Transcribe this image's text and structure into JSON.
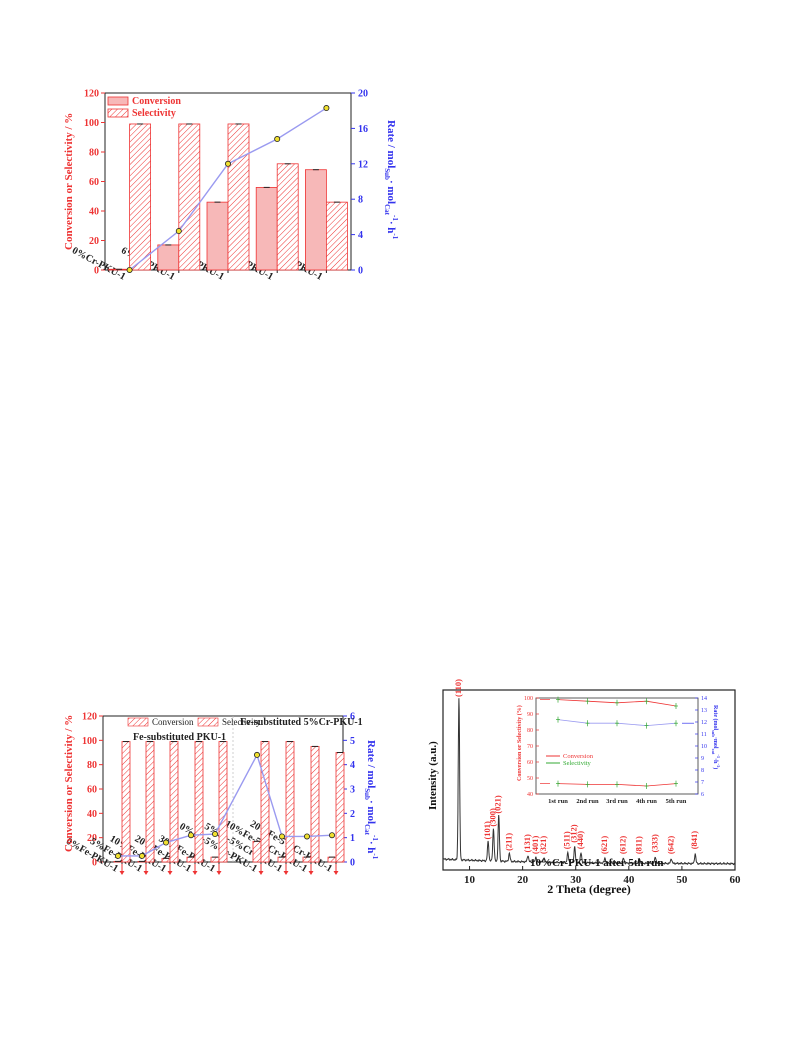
{
  "colors": {
    "red": "#ee3333",
    "blue": "#3333ee",
    "bar_fill": "#f7b8b8",
    "line": "#9a9af0",
    "dark": "#222222"
  },
  "charts": {
    "top": {
      "ylabel_left": "Conversion or Selectivity / %",
      "ylabel_right": "Rate / mol",
      "ylabel_right_sub": "Sub",
      "ylabel_right_mid": "· mol",
      "ylabel_right_sub2": "Cat",
      "ylabel_right_sup": "-1",
      "ylabel_right_tail": "· h",
      "ylabel_right_sup2": "-1",
      "legend": [
        "Conversion",
        "Selectivity"
      ]
    },
    "bottom_left": {
      "ylabel_left": "Conversion or Selectivity / %",
      "ylabel_right": "Rate / mol",
      "ylabel_right_sub": "Sub",
      "ylabel_right_mid": "· mol",
      "ylabel_right_sub2": "Cat",
      "ylabel_right_sup": "-1",
      "ylabel_right_tail": "· h",
      "ylabel_right_sup2": "-1",
      "legend": [
        "Conversion",
        "Selectivity"
      ],
      "group_titles": [
        "Fe-substituted PKU-1",
        "Fe-substituted 5%Cr-PKU-1"
      ]
    },
    "bottom_right": {
      "xlabel": "2 Theta (degree)",
      "ylabel": "Intensity (a.u.)",
      "sample_label": "10%Cr-PKU-1 after 5th run",
      "peak_labels": [
        "(110)",
        "(101)",
        "(300)",
        "(021)",
        "(211)",
        "(131)",
        "(401)",
        "(321)",
        "(511)",
        "(312)",
        "(440)",
        "(621)",
        "(612)",
        "(811)",
        "(333)",
        "(642)",
        "(841)"
      ],
      "inset": {
        "ylabel_left": "Conversion or Selectivity (%)",
        "ylabel_right": "Rate (mol",
        "ylabel_right_sub": "sub",
        "ylabel_right_mid": "·mol",
        "ylabel_right_sub2": "cat",
        "ylabel_right_sup": "-1",
        "ylabel_right_tail": "·h",
        "ylabel_right_sup2": "-1",
        "ylabel_right_end": ")",
        "legend": [
          "Conversion",
          "Selectivity"
        ]
      }
    }
  },
  "chart_data": [
    {
      "type": "bar",
      "categories": [
        "0%Cr-PKU-1",
        "6%Cr-PKU-1",
        "10%Cr-PKU-1",
        "20%Cr-PKU-1",
        "30%Cr-PKU-1"
      ],
      "series": [
        {
          "name": "Conversion",
          "values": [
            0.5,
            17,
            46,
            56,
            68
          ]
        },
        {
          "name": "Selectivity",
          "values": [
            99,
            99,
            99,
            72,
            46
          ]
        }
      ],
      "line": {
        "axis": "right",
        "values": [
          0,
          4.4,
          12,
          14.8,
          18.3
        ]
      },
      "ylim": [
        0,
        120
      ],
      "yticks": [
        0,
        20,
        40,
        60,
        80,
        100,
        120
      ],
      "y2lim": [
        0,
        20
      ],
      "y2ticks": [
        0,
        4,
        8,
        12,
        16,
        20
      ]
    },
    {
      "type": "bar",
      "categories": [
        "0%Fe-PKU-1",
        "5%Fe-PKU-1",
        "10%Fe-PKU-1",
        "20%Fe-PKU-1",
        "30%Fe-PKU-1",
        "0%Fe-5%Cr-PKU-1",
        "5%Fe-5%Cr-PKU-1",
        "10%Fe-5%Cr-PKU-1",
        "20%Fe-5%Cr-PKU-1"
      ],
      "series": [
        {
          "name": "Conversion",
          "values": [
            0.5,
            0.5,
            3,
            4,
            4,
            17,
            4,
            4,
            4
          ]
        },
        {
          "name": "Selectivity",
          "values": [
            99,
            99,
            99,
            99,
            99,
            99,
            99,
            95,
            90
          ]
        }
      ],
      "line": {
        "axis": "right",
        "values": [
          0.25,
          0.25,
          0.8,
          1.1,
          1.15,
          4.4,
          1.05,
          1.05,
          1.1
        ]
      },
      "ylim": [
        0,
        120
      ],
      "yticks": [
        0,
        20,
        40,
        60,
        80,
        100,
        120
      ],
      "y2lim": [
        0,
        6
      ],
      "y2ticks": [
        0,
        1,
        2,
        3,
        4,
        5,
        6
      ]
    },
    {
      "type": "line",
      "x_range": [
        5,
        60
      ],
      "xticks": [
        10,
        20,
        30,
        40,
        50,
        60
      ],
      "peaks": [
        {
          "label": "(110)",
          "x": 8.0,
          "h": 1.0
        },
        {
          "label": "(101)",
          "x": 13.5,
          "h": 0.12
        },
        {
          "label": "(300)",
          "x": 14.5,
          "h": 0.2
        },
        {
          "label": "(021)",
          "x": 15.5,
          "h": 0.28
        },
        {
          "label": "(211)",
          "x": 17.5,
          "h": 0.05
        },
        {
          "label": "(131)",
          "x": 21.0,
          "h": 0.04
        },
        {
          "label": "(401)",
          "x": 22.5,
          "h": 0.03
        },
        {
          "label": "(321)",
          "x": 24.0,
          "h": 0.03
        },
        {
          "label": "(511)",
          "x": 28.5,
          "h": 0.06
        },
        {
          "label": "(312)",
          "x": 29.8,
          "h": 0.1
        },
        {
          "label": "(440)",
          "x": 31.0,
          "h": 0.06
        },
        {
          "label": "(621)",
          "x": 35.5,
          "h": 0.03
        },
        {
          "label": "(612)",
          "x": 39.0,
          "h": 0.03
        },
        {
          "label": "(811)",
          "x": 42.0,
          "h": 0.03
        },
        {
          "label": "(333)",
          "x": 45.0,
          "h": 0.04
        },
        {
          "label": "(642)",
          "x": 48.0,
          "h": 0.03
        },
        {
          "label": "(841)",
          "x": 52.5,
          "h": 0.06
        }
      ],
      "inset": {
        "type": "line",
        "categories": [
          "1st run",
          "2nd run",
          "3rd run",
          "4th run",
          "5th run"
        ],
        "series": [
          {
            "name": "Conversion",
            "values": [
              46.5,
              46,
              46,
              45,
              46.5
            ]
          },
          {
            "name": "Selectivity",
            "values": [
              99,
              98,
              97,
              98,
              95
            ]
          }
        ],
        "rate": [
          12.2,
          11.9,
          11.9,
          11.7,
          11.9
        ],
        "ylim": [
          40,
          100
        ],
        "yticks": [
          40,
          50,
          60,
          70,
          80,
          90,
          100
        ],
        "y2lim": [
          6,
          14
        ],
        "y2ticks": [
          6,
          7,
          8,
          9,
          10,
          11,
          12,
          13,
          14
        ]
      }
    }
  ]
}
